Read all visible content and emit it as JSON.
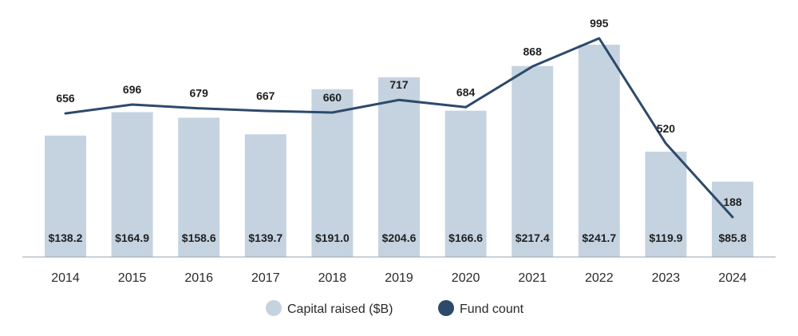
{
  "chart_data": {
    "type": "bar",
    "categories": [
      "2014",
      "2015",
      "2016",
      "2017",
      "2018",
      "2019",
      "2020",
      "2021",
      "2022",
      "2023",
      "2024"
    ],
    "series": [
      {
        "name": "Capital raised ($B)",
        "type": "bar",
        "values": [
          138.2,
          164.9,
          158.6,
          139.7,
          191.0,
          204.6,
          166.6,
          217.4,
          241.7,
          119.9,
          85.8
        ],
        "labels": [
          "$138.2",
          "$164.9",
          "$158.6",
          "$139.7",
          "$191.0",
          "$204.6",
          "$166.6",
          "$217.4",
          "$241.7",
          "$119.9",
          "$85.8"
        ],
        "color": "#c5d3e0"
      },
      {
        "name": "Fund count",
        "type": "line",
        "values": [
          656,
          696,
          679,
          667,
          660,
          717,
          684,
          868,
          995,
          520,
          188
        ],
        "labels": [
          "656",
          "696",
          "679",
          "667",
          "660",
          "717",
          "684",
          "868",
          "995",
          "520",
          "188"
        ],
        "color": "#2d4a6b"
      }
    ],
    "legend": {
      "position": "bottom"
    },
    "grid": false
  }
}
